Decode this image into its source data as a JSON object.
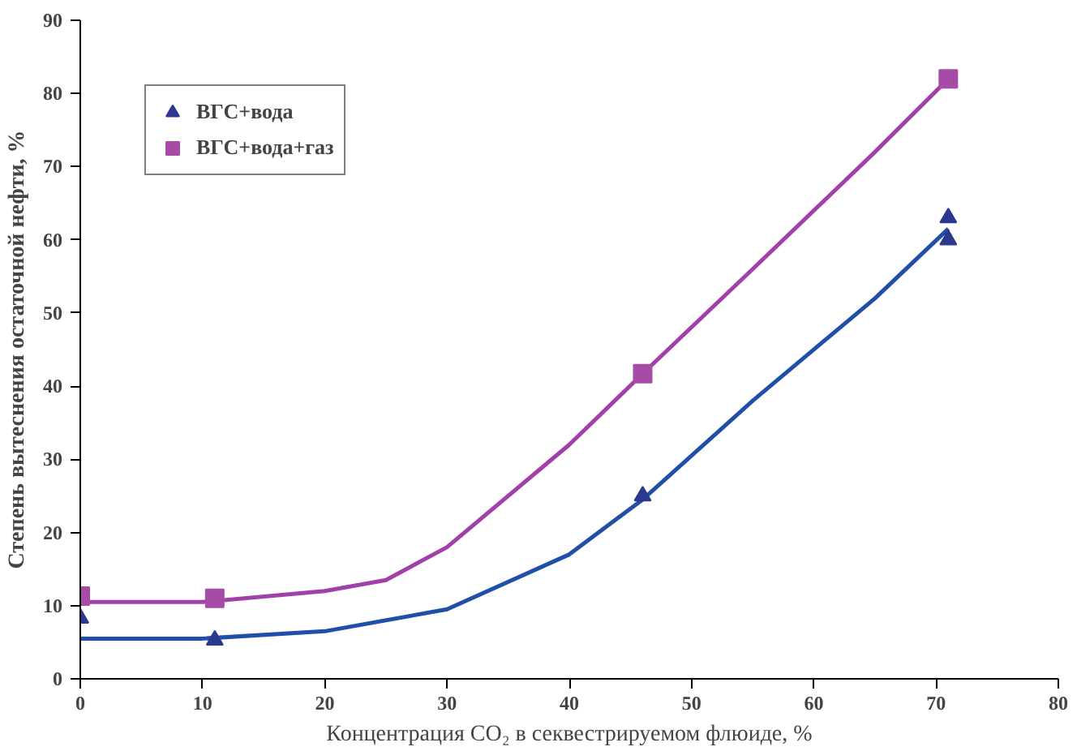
{
  "chart_data": {
    "type": "scatter",
    "xlabel": "Концентрация CO₂ в секвестрируемом флюиде, %",
    "ylabel": "Степень вытеснения остаточной нефти, %",
    "xlim": [
      0,
      80
    ],
    "ylim": [
      0,
      90
    ],
    "xticks": [
      0,
      10,
      20,
      30,
      40,
      50,
      60,
      70,
      80
    ],
    "yticks": [
      0,
      10,
      20,
      30,
      40,
      50,
      60,
      70,
      80,
      90
    ],
    "grid": false,
    "legend": "top left",
    "series": [
      {
        "type": "line",
        "color": "#1f4fa8",
        "marker": "none",
        "x": [
          0,
          10,
          20,
          30,
          40,
          46,
          55,
          65,
          71
        ],
        "values": [
          5.5,
          5.5,
          6.5,
          9.5,
          17,
          24.5,
          38,
          52,
          61.5
        ]
      },
      {
        "type": "line",
        "color": "#a040a8",
        "marker": "none",
        "x": [
          0,
          10,
          20,
          25,
          30,
          40,
          46,
          55,
          65,
          71
        ],
        "values": [
          10.5,
          10.5,
          12,
          13.5,
          18,
          32,
          41.7,
          56,
          72,
          82
        ]
      },
      {
        "name": "ВГС+вода",
        "color": "#2b3a8f",
        "marker": "triangle",
        "x": [
          0,
          11,
          46,
          71,
          71
        ],
        "values": [
          8.3,
          5.3,
          25,
          63,
          60
        ]
      },
      {
        "name": "ВГС+вода+газ",
        "color": "#a64ca6",
        "marker": "square",
        "x": [
          0,
          11,
          46,
          71
        ],
        "values": [
          11.3,
          11,
          41.7,
          82
        ]
      }
    ]
  }
}
